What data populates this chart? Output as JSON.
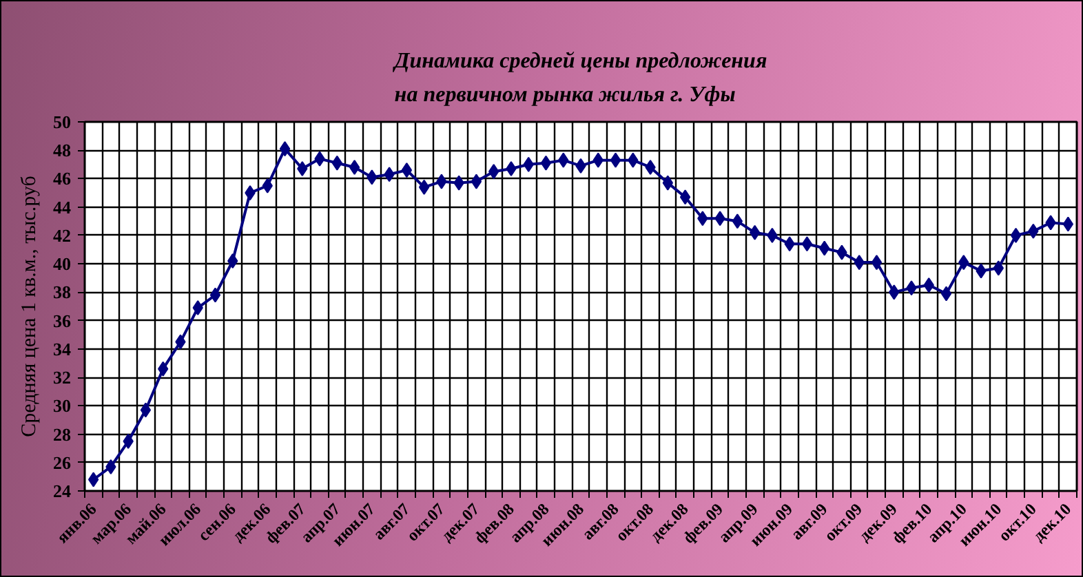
{
  "chart_data": {
    "type": "line",
    "title": "Динамика средней цены предложения\nна первичном рынка жилья г. Уфы",
    "ylabel": "Средняя цена 1 кв.м., тыс.руб",
    "categories": [
      "янв.06",
      null,
      "мар.06",
      null,
      "май.06",
      null,
      "июл.06",
      null,
      "сен.06",
      null,
      "дек.06",
      null,
      "фев.07",
      null,
      "апр.07",
      null,
      "июн.07",
      null,
      "авг.07",
      null,
      "окт.07",
      null,
      "дек.07",
      null,
      "фев.08",
      null,
      "апр.08",
      null,
      "июн.08",
      null,
      "авг.08",
      null,
      "окт.08",
      null,
      "дек.08",
      null,
      "фев.09",
      null,
      "апр.09",
      null,
      "июн.09",
      null,
      "авг.09",
      null,
      "окт.09",
      null,
      "дек.09",
      null,
      "фев.10",
      null,
      "апр.10",
      null,
      "июн.10",
      null,
      "окт.10",
      null,
      "дек.10"
    ],
    "values": [
      24.8,
      25.7,
      27.5,
      29.7,
      32.6,
      34.5,
      36.9,
      37.8,
      40.2,
      45.0,
      45.5,
      48.1,
      46.7,
      47.4,
      47.1,
      46.8,
      46.1,
      46.3,
      46.6,
      45.4,
      45.8,
      45.7,
      45.8,
      46.5,
      46.7,
      47.0,
      47.1,
      47.3,
      46.9,
      47.3,
      47.3,
      47.3,
      46.8,
      45.7,
      44.7,
      43.2,
      43.2,
      43.0,
      42.2,
      42.0,
      41.4,
      41.4,
      41.1,
      40.8,
      40.1,
      40.1,
      38.0,
      38.3,
      38.5,
      37.9,
      40.1,
      39.5,
      39.7,
      42.0,
      42.3,
      42.9,
      42.8
    ],
    "color": "#000080",
    "marker": "diamond",
    "line_style": "solid",
    "grid": true,
    "ylim": [
      24,
      50
    ],
    "yticks": [
      24,
      26,
      28,
      30,
      32,
      34,
      36,
      38,
      40,
      42,
      44,
      46,
      48,
      50
    ]
  }
}
